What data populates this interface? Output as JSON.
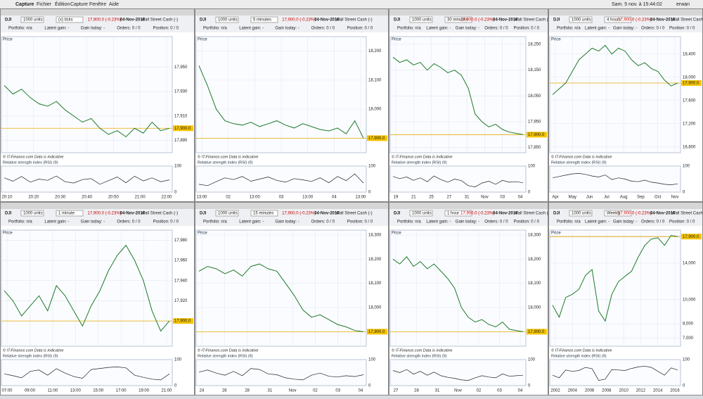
{
  "menubar": {
    "app": "Capture",
    "menus": [
      "Fichier",
      "Édition",
      "Capture",
      "Fenêtre",
      "Aide"
    ],
    "clock": "Sam. 5 nov. à 15:44:02",
    "user": "erwan"
  },
  "instrument": {
    "units": "1000 units",
    "symbol": "DJI",
    "quote": "17,900.0 (-0.23%)",
    "date": "04-Nov-2016",
    "name": "Wall Street Cash (-)",
    "price_label": "Price",
    "info": [
      "Portfolio: n/a",
      "Latent gain: -",
      "Gain today: -",
      "Orders: 0 / 0",
      "Position: 0 / 0"
    ],
    "footer": "© IT-Finance.com  Data is indicative",
    "rsi_label": "Relative strength index (RSI) (9)",
    "rsi_ticks": [
      100,
      0
    ],
    "last": {
      "value": 17900,
      "label": "17,900.0"
    }
  },
  "panels": [
    {
      "interval": "(x) ticks",
      "xlabels": [
        "20:10",
        "20:20",
        "20:30",
        "20:40",
        "20:50",
        "21:00",
        "22:00"
      ],
      "ylim": [
        17880,
        17975
      ],
      "yticks": [
        {
          "value": 17950,
          "label": "17,950"
        },
        {
          "value": 17930,
          "label": "17,930"
        },
        {
          "value": 17910,
          "label": "17,910"
        },
        {
          "value": 17890,
          "label": "17,890"
        }
      ],
      "prices": [
        17935,
        17928,
        17932,
        17925,
        17920,
        17918,
        17922,
        17915,
        17910,
        17905,
        17908,
        17900,
        17895,
        17898,
        17893,
        17900,
        17896,
        17905,
        17898,
        17900
      ],
      "rsi": [
        55,
        42,
        60,
        38,
        50,
        45,
        62,
        40,
        35,
        48,
        52,
        30,
        44,
        58,
        36,
        61,
        43,
        55,
        40,
        47
      ]
    },
    {
      "interval": "5 minutes",
      "xlabels": [
        "13:00",
        "02",
        "13:00",
        "03",
        "13:00",
        "04",
        "13:00"
      ],
      "ylim": [
        17850,
        18250
      ],
      "yticks": [
        {
          "value": 18200,
          "label": "18,200"
        },
        {
          "value": 18100,
          "label": "18,100"
        },
        {
          "value": 18000,
          "label": "18,000"
        },
        {
          "value": 17900,
          "label": "17,900"
        }
      ],
      "prices": [
        18150,
        18080,
        18000,
        17960,
        17950,
        17945,
        17955,
        17940,
        17950,
        17960,
        17945,
        17935,
        17950,
        17940,
        17930,
        17925,
        17935,
        17915,
        17960,
        17900
      ],
      "rsi": [
        30,
        25,
        40,
        55,
        48,
        60,
        42,
        50,
        58,
        45,
        38,
        52,
        47,
        41,
        55,
        36,
        60,
        44,
        70,
        35
      ]
    },
    {
      "interval": "30 minutes",
      "xlabels": [
        "19",
        "21",
        "25",
        "27",
        "31",
        "Nov",
        "03",
        "04"
      ],
      "ylim": [
        17830,
        18280
      ],
      "yticks": [
        {
          "value": 18250,
          "label": "18,250"
        },
        {
          "value": 18150,
          "label": "18,150"
        },
        {
          "value": 18050,
          "label": "18,050"
        },
        {
          "value": 17950,
          "label": "17,950"
        },
        {
          "value": 17850,
          "label": "17,850"
        }
      ],
      "prices": [
        18200,
        18180,
        18190,
        18170,
        18180,
        18150,
        18175,
        18160,
        18140,
        18150,
        18130,
        18080,
        17980,
        17950,
        17930,
        17940,
        17920,
        17910,
        17905,
        17900
      ],
      "rsi": [
        60,
        52,
        58,
        45,
        55,
        40,
        62,
        48,
        38,
        50,
        44,
        25,
        20,
        35,
        42,
        30,
        45,
        38,
        40,
        36
      ]
    },
    {
      "interval": "4 hours",
      "xlabels": [
        "Apr",
        "May",
        "Jun",
        "Jul",
        "Aug",
        "Sep",
        "Oct",
        "Nov"
      ],
      "ylim": [
        16700,
        18700
      ],
      "yticks": [
        {
          "value": 18400,
          "label": "18,400"
        },
        {
          "value": 18000,
          "label": "18,000"
        },
        {
          "value": 17600,
          "label": "17,600"
        },
        {
          "value": 17200,
          "label": "17,200"
        },
        {
          "value": 16800,
          "label": "16,800"
        }
      ],
      "prices": [
        17700,
        17800,
        17900,
        18100,
        18300,
        18400,
        18500,
        18450,
        18550,
        18400,
        18500,
        18450,
        18300,
        18200,
        18250,
        18150,
        18100,
        17950,
        17850,
        17900
      ],
      "rsi": [
        55,
        60,
        65,
        70,
        72,
        68,
        62,
        58,
        66,
        48,
        55,
        50,
        42,
        40,
        46,
        38,
        35,
        30,
        28,
        32
      ]
    },
    {
      "interval": "1 minute",
      "xlabels": [
        "07:00",
        "09:00",
        "11:00",
        "13:00",
        "15:00",
        "17:00",
        "19:00",
        "21:00"
      ],
      "ylim": [
        17875,
        17990
      ],
      "yticks": [
        {
          "value": 17980,
          "label": "17,980"
        },
        {
          "value": 17960,
          "label": "17,960"
        },
        {
          "value": 17940,
          "label": "17,940"
        },
        {
          "value": 17920,
          "label": "17,920"
        },
        {
          "value": 17900,
          "label": "17,900"
        }
      ],
      "prices": [
        17930,
        17920,
        17905,
        17915,
        17925,
        17910,
        17935,
        17925,
        17910,
        17895,
        17915,
        17930,
        17950,
        17965,
        17975,
        17960,
        17940,
        17910,
        17890,
        17900
      ],
      "rsi": [
        45,
        38,
        30,
        55,
        60,
        40,
        65,
        48,
        35,
        28,
        62,
        66,
        70,
        72,
        68,
        40,
        32,
        25,
        22,
        45
      ]
    },
    {
      "interval": "15 minutes",
      "xlabels": [
        "24",
        "26",
        "28",
        "31",
        "Nov",
        "02",
        "03",
        "04"
      ],
      "ylim": [
        17840,
        18320
      ],
      "yticks": [
        {
          "value": 18300,
          "label": "18,300"
        },
        {
          "value": 18200,
          "label": "18,200"
        },
        {
          "value": 18100,
          "label": "18,100"
        },
        {
          "value": 18000,
          "label": "18,000"
        },
        {
          "value": 17900,
          "label": "17,900"
        }
      ],
      "prices": [
        18150,
        18170,
        18160,
        18140,
        18155,
        18130,
        18170,
        18180,
        18160,
        18150,
        18100,
        18050,
        17990,
        17960,
        17970,
        17950,
        17930,
        17920,
        17905,
        17900
      ],
      "rsi": [
        52,
        60,
        48,
        40,
        55,
        38,
        66,
        62,
        45,
        42,
        30,
        25,
        22,
        40,
        48,
        36,
        33,
        38,
        35,
        42
      ]
    },
    {
      "interval": "1 hour",
      "xlabels": [
        "27",
        "28",
        "31",
        "Nov",
        "02",
        "03",
        "04"
      ],
      "ylim": [
        17840,
        18320
      ],
      "yticks": [
        {
          "value": 18300,
          "label": "18,300"
        },
        {
          "value": 18200,
          "label": "18,200"
        },
        {
          "value": 18100,
          "label": "18,100"
        },
        {
          "value": 18000,
          "label": "18,000"
        },
        {
          "value": 17900,
          "label": "17,900"
        }
      ],
      "prices": [
        18200,
        18180,
        18210,
        18170,
        18190,
        18160,
        18180,
        18150,
        18120,
        18080,
        18000,
        17960,
        17940,
        17950,
        17930,
        17920,
        17940,
        17910,
        17905,
        17900
      ],
      "rsi": [
        58,
        50,
        62,
        44,
        55,
        40,
        52,
        38,
        32,
        28,
        22,
        20,
        30,
        38,
        33,
        30,
        45,
        36,
        38,
        40
      ]
    },
    {
      "interval": "Weekly",
      "xlabels": [
        "2002",
        "2004",
        "2006",
        "2008",
        "2010",
        "2012",
        "2014",
        "2016"
      ],
      "ylim": [
        6500,
        19000
      ],
      "log_scale": true,
      "yticks": [
        {
          "value": 18000,
          "label": "18,000"
        },
        {
          "value": 14000,
          "label": "14,000"
        },
        {
          "value": 10000,
          "label": "10,000"
        },
        {
          "value": 8000,
          "label": "8,000"
        },
        {
          "value": 7000,
          "label": "7,000"
        }
      ],
      "prices": [
        9500,
        8500,
        10200,
        10500,
        11000,
        12500,
        13200,
        9000,
        8200,
        10500,
        11800,
        12400,
        13000,
        14800,
        16500,
        17500,
        17700,
        16500,
        18100,
        17900
      ],
      "rsi": [
        40,
        30,
        60,
        55,
        58,
        70,
        65,
        20,
        25,
        62,
        60,
        58,
        66,
        72,
        75,
        70,
        55,
        40,
        68,
        60
      ]
    }
  ]
}
